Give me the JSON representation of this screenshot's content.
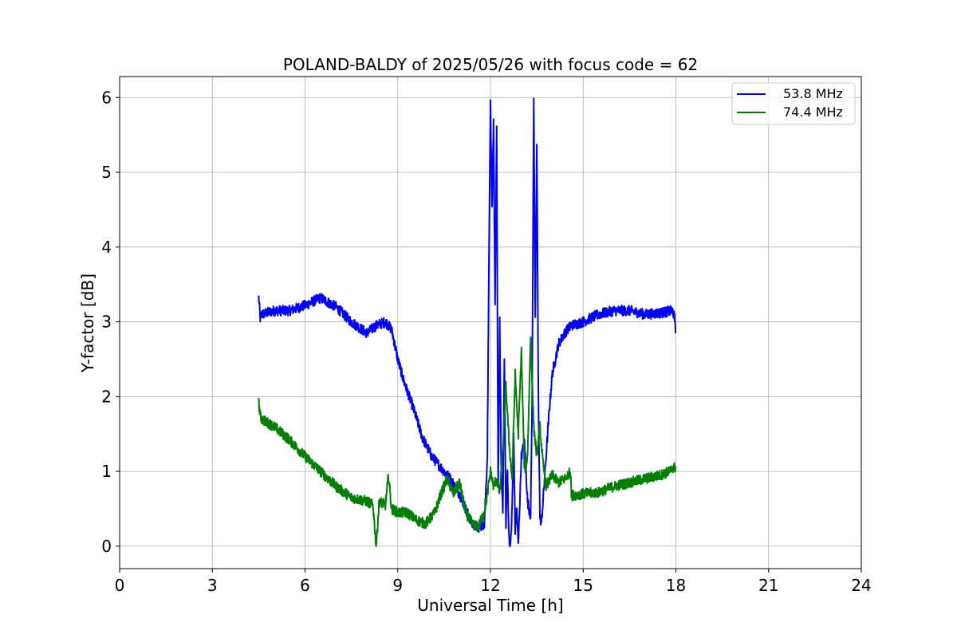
{
  "chart_data": {
    "type": "line",
    "title": "POLAND-BALDY of 2025/05/26 with focus code = 62",
    "xlabel": "Universal Time [h]",
    "ylabel": "Y-factor [dB]",
    "xlim": [
      0,
      24
    ],
    "ylim": [
      -0.3,
      6.28
    ],
    "xticks": [
      0,
      3,
      6,
      9,
      12,
      15,
      18,
      21,
      24
    ],
    "yticks": [
      0,
      1,
      2,
      3,
      4,
      5,
      6
    ],
    "grid": true,
    "legend_position": "top-right",
    "series": [
      {
        "name": "53.8 MHz",
        "color": "#0000ff",
        "noise": 0.07,
        "x": [
          4.5,
          4.55,
          4.6,
          5.0,
          5.5,
          6.0,
          6.5,
          7.0,
          7.5,
          8.0,
          8.3,
          8.6,
          8.8,
          9.0,
          9.2,
          9.5,
          9.8,
          10.1,
          10.4,
          10.7,
          11.0,
          11.2,
          11.4,
          11.6,
          11.8,
          11.9,
          11.95,
          12.0,
          12.05,
          12.1,
          12.15,
          12.2,
          12.25,
          12.3,
          12.35,
          12.4,
          12.45,
          12.5,
          12.55,
          12.6,
          12.65,
          12.7,
          12.75,
          12.8,
          12.85,
          12.9,
          13.0,
          13.1,
          13.2,
          13.3,
          13.35,
          13.4,
          13.45,
          13.5,
          13.55,
          13.6,
          13.65,
          13.7,
          13.8,
          13.9,
          14.0,
          14.2,
          14.4,
          14.6,
          15.0,
          15.5,
          16.0,
          16.5,
          17.0,
          17.5,
          17.9,
          17.98,
          18.0
        ],
        "y": [
          3.33,
          3.05,
          3.1,
          3.15,
          3.15,
          3.22,
          3.32,
          3.2,
          3.0,
          2.85,
          2.95,
          3.0,
          2.9,
          2.5,
          2.2,
          1.85,
          1.45,
          1.2,
          1.05,
          0.9,
          0.7,
          0.5,
          0.3,
          0.25,
          0.3,
          1.2,
          3.8,
          5.9,
          4.5,
          5.7,
          3.2,
          5.6,
          0.8,
          3.0,
          1.0,
          0.5,
          2.5,
          0.3,
          1.0,
          0.1,
          0.0,
          0.5,
          1.5,
          0.2,
          0.5,
          0.0,
          1.2,
          1.4,
          0.6,
          0.4,
          2.0,
          5.99,
          3.0,
          5.4,
          2.0,
          0.4,
          0.3,
          0.6,
          1.2,
          1.8,
          2.3,
          2.7,
          2.85,
          2.95,
          3.0,
          3.1,
          3.15,
          3.15,
          3.1,
          3.12,
          3.15,
          3.0,
          2.85
        ]
      },
      {
        "name": "74.4 MHz",
        "color": "#008000",
        "noise": 0.07,
        "x": [
          4.5,
          4.55,
          4.6,
          5.0,
          5.5,
          6.0,
          6.5,
          7.0,
          7.5,
          8.0,
          8.2,
          8.3,
          8.35,
          8.4,
          8.6,
          8.7,
          8.8,
          9.0,
          9.3,
          9.6,
          9.9,
          10.2,
          10.4,
          10.6,
          10.8,
          11.0,
          11.2,
          11.4,
          11.6,
          11.8,
          11.9,
          12.0,
          12.1,
          12.2,
          12.3,
          12.4,
          12.5,
          12.6,
          12.7,
          12.8,
          12.9,
          13.0,
          13.1,
          13.2,
          13.3,
          13.4,
          13.5,
          13.6,
          13.7,
          13.8,
          14.0,
          14.2,
          14.4,
          14.6,
          14.62,
          15.0,
          15.5,
          16.0,
          16.5,
          17.0,
          17.5,
          17.8,
          17.9,
          18.0
        ],
        "y": [
          1.92,
          1.75,
          1.7,
          1.6,
          1.42,
          1.2,
          1.0,
          0.8,
          0.65,
          0.6,
          0.55,
          0.0,
          0.3,
          0.6,
          0.55,
          0.95,
          0.5,
          0.45,
          0.45,
          0.35,
          0.3,
          0.45,
          0.7,
          0.9,
          0.7,
          0.85,
          0.45,
          0.3,
          0.25,
          0.45,
          0.7,
          1.0,
          0.8,
          0.9,
          0.7,
          1.3,
          2.15,
          1.4,
          0.9,
          2.3,
          1.5,
          2.6,
          1.0,
          1.2,
          2.8,
          1.6,
          1.2,
          1.6,
          1.1,
          0.8,
          0.95,
          0.85,
          0.9,
          1.0,
          0.68,
          0.7,
          0.72,
          0.8,
          0.85,
          0.9,
          0.95,
          1.0,
          1.05,
          1.05
        ]
      }
    ]
  }
}
